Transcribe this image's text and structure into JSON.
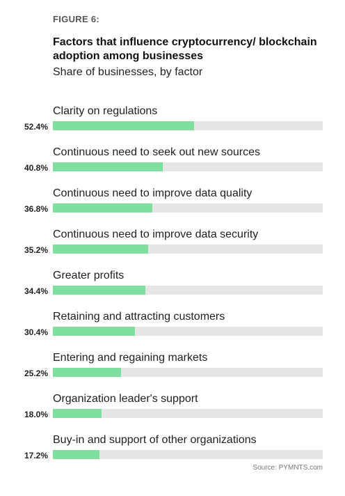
{
  "figure_label": "FIGURE 6:",
  "source": "Source: PYMNTS.com",
  "colors": {
    "bar_fill": "#7fdf9e",
    "bar_track": "#e6e6e6"
  },
  "chart_data": {
    "type": "bar",
    "orientation": "horizontal",
    "title": "Factors that influence cryptocurrency/ blockchain adoption among businesses",
    "subtitle": "Share of businesses, by factor",
    "xlim": [
      0,
      100
    ],
    "categories": [
      "Clarity on regulations",
      "Continuous need to seek out new sources",
      "Continuous need to improve data quality",
      "Continuous need to improve data security",
      "Greater profits",
      "Retaining and attracting customers",
      "Entering and regaining markets",
      "Organization leader's support",
      "Buy-in and support of other organizations"
    ],
    "values": [
      52.4,
      40.8,
      36.8,
      35.2,
      34.4,
      30.4,
      25.2,
      18.0,
      17.2
    ],
    "value_labels": [
      "52.4%",
      "40.8%",
      "36.8%",
      "35.2%",
      "34.4%",
      "30.4%",
      "25.2%",
      "18.0%",
      "17.2%"
    ]
  }
}
